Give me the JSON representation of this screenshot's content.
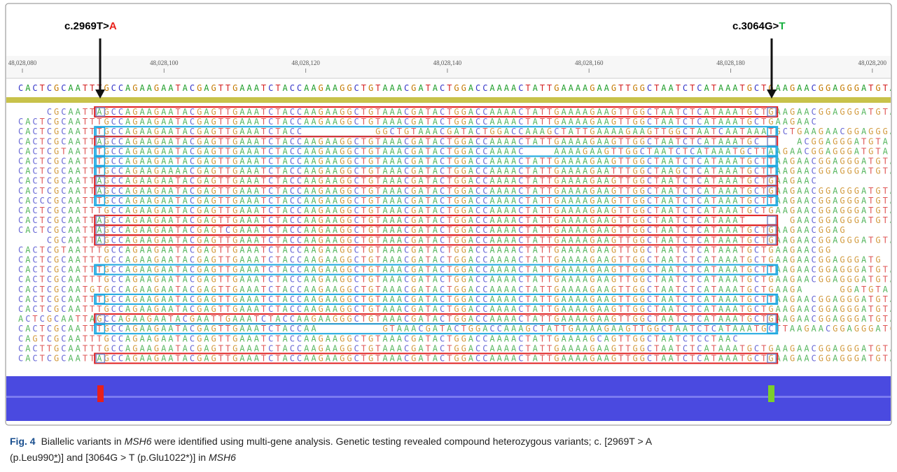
{
  "variants": [
    {
      "label": "c.2969T>",
      "alt": "A",
      "color": "#e8201a"
    },
    {
      "label": "c.3064G>",
      "alt": "T",
      "color": "#18b040"
    }
  ],
  "ruler": [
    "48,028,080",
    "48,028,100",
    "48,028,120",
    "48,028,140",
    "48,028,160",
    "48,028,180",
    "48,028,200"
  ],
  "reference": "CACTCGCAATTTGCCAGAAGAATACGAGTTGAAATCTACCAAGAAGGCTGTAAACGATACTGGACCAAAACTATTGAAAAGAAGTTGGCTAATCTCATAAATGCTGAAGAACGGAGGGATGTA",
  "reads": [
    "    CGCAATTAGCCAGAAGAATACGAGTTGAAATCTACCAAGAAGGCTGTAAACGATACTGGACCAAAACTATTGAAAAGAAGTTGGCTAATCTCATAAATGCTGAAGAACGGAGGGATGTA",
    "CACTCGCAATTTGCCAGAAGAATACGAGTTGAAATCTACCAAGAAGGCTGTAAACGATACTGGACCAAAACTATTGAAAAGAAGTTGGCTAATCTCATAAATGCTGAAGAAC",
    "CACTCGCAATTTGCCAGAAGAATACGAGTTGAAATCTACC          GGCTGTAAACGATACTGGACCAAAGCTATTGAAAAGAAGTTGGCTAATCAATAAATGCTGAAGAACGGAGGGATGTA",
    "CACTCGCAATTAGCCAGAAGAATACGAGTTGAAATCTACCAAGAAGGCTGTAAACGATACTGGACCAAAACTATTGAAAAGAAGTTGGCTAATCTCATAAATGC     ACGGAGGGATGTA",
    "CACTCGTAATTTGCCAGAAGAATACGAGTTGAAATCTACCAAGAAGGCTGTAAACGATACTGGACCAAAAC    AAAAGAAGTTGGCTAATCTCATAAATGCTTAAGAACGGAGGGATGTA",
    "CACTCGCAATTTGCCAGAAGAATACGAGTTGAAATCTACCAAGAAGGCTGTAAACGATACTGGACCAAAACTATTGAAAAGAAGTTGGCTAATCTCATAAATGCTTAAGAACGGAGGGATGTA",
    "CACTCGCAATTTGCCAGAAGAAAACGAGTTGAAATCTACCAAGAAGGCTGTAAACGATACTGGACCAAAACTATTGAAAAGAATTTGGCTAAGCTCATAAATGCTTAAGAACGGAGGGATGTA",
    "CACTCGCAATTAGCCAGAAGAATACGAGTTGAAATCTACCAAGAAGGCTGTAAACGATACTGGACCAAAACTATTGAAAAGAAGTTGGCTAATCTCATAAATGCTGAAGAAC",
    "CACTCGCAATTAGCCAGAAGAATACGAGTTGAAATCTACCAAGAAGGCTGTAAACGATACTGGACCAAAACTATTGAAAAGAAGTTGGCTAATCTCATAAATGCTGAAGAACGGAGGGATGTA",
    "CACCCGCAATTTGCCAGAAGAATACGAGTTGAAATCTACCAAGAAGGCTGTAAACGATACTGGACCAAAACTATTGAAAAGAAGTTGGCTAATCTCATAAATGCTTAAGAACGGAGGGATGTA",
    "CACTCGCAATTTGCCAGAAGAATACGAGTTGAAATCTACCAAGAAGGCTGTAAACGATACTGGACCAAAACTATTGAAAAGAAGTTGGCTAATCTCATAAATGCTGAAGAACGGAGGGATGTA",
    "CACTCGCAATTAGCCAGAAGAATACGAGTTGAAATCTACCAAGAAGGCTGTAAACGATACTGGACCAAAACTATTGAAAAGAAGTTGGCTAATCTCATAAAT      GAACGGAGGGATGTA",
    "CACTCGCAATTAGCCAGAAGAATACGAGTCGAAATCTACCAAGAAGGCTGTAAACGATACTGGACCAAAACTATTGAAAAGAAGTTGGCTAATCTCATAAATGCTGAAGAACGGAG",
    "    CGCAATTAGCCAGAAGAATACGAGTTGAAATCTACCAAGAAGGCTGTAAACGATACTGGACCAAAACTATTGAAAAGAAGTTGGCTAATCTCATAAATGCTGAAGAACGGAGGGATGTA",
    "CACTCGTAATTTGCCAGAAGAATACGAGTTGAAATCTACCAAGAAGGCTGTAAACGATACTGGACCAAAACTATTGAAAAGAAGTTGGCTAATCTCATAAATGCTGAAGAACGG",
    "CACTCGCAATTTGCCAGAAGAATACGAGTTGAAATCTACCAAGAAGGCTGTAAACGATACTGGACCAAAACTATTGAAAAGAAGTTGGCTAATCTCATAAATGCTGAAGAACGGAGGGATG",
    "CACTCGCAATTTGCCAGAAGAATACGAGTTGAAATCTACCAAGAAGGCTGTAAACGATACTGGACCAAAACTATTGAAAAGAAGTTGGCTAATCTCATAAATGCTTAAGAACGGAGGGATGTA",
    "CACTCGCAATTTGCCAGAAGAATACGAGTTGAAATCTACCAAGAAGGCTGTAAACGATACTGGACCAAAACTATTGAAAAGAAGTTGGCTAATCTCATAAATGCTGAAGAACGGAGGGATGTA",
    "CACTCGCAATGTGCCAGAAGAATACGAGTTGAAATCTACCAAGAAGGCTGTAAACGATACTGGACCAAAACTATTGAAAAGAAGTTGGCTAATCTCATAAATGCTGAAGA     GGATGTA",
    "CACTCGCAATTTGCCAGAAGAATACGAGTTGAAATCTACCAAGAAGGCTGTAAACGATACTGGACCAAAACTATTGAAAAGAAGTTGGCTAATCTCATAAATGCTTAAGAACGGAGGGATGTA",
    "CACTCGCAATTTGCCAGAAGAATACGAGTTGAAATCTACCAAGAAGGCTGTAAACGATACTGGACCAAAACTATTGAAAAGAAGTTGGCTAATCTCATAAATGCTGAAGAACGGAGGGATGTA",
    "ACTCGCAATTAGCCAGAAGAATACGAATTGAAATCTACCAAGAAGGGCTGTAAACGATACTGGACCAAAACTATTGAAAAGAAGTTGGCTAATCTCATAAATGCTGAAGAACGGAGGGATGTA",
    "CACTCGCAATTTGCCAGAAGAATACGAGTTGAAATCTACCAA         GTAAACGATACTGGACCAAAGCTATTGAAAAGAAGTTGGCTAATCTCATAAATGCTTAAGAACGGAGGGATGTA",
    "CAGTCGCAATTTGCCAGAAGAATACGAGTTGAAATCTACCAAGAAGGCTGTAAACGATACTGGACCAAAACTATTGAAAAGCAGTTGGCTAATCTCCTAAC",
    "CACTTGCAATTTGCCAGAAGAATACGAGTTGAAATCTACCAAGAAGGCTGTAAACGATACTGGACCAAAACTATTGAAAAGAAGTTGGCTAATCTCATAAATGCTGAAGAACGGAGGGATGTA",
    "CACTCGCAATTAGCCAGAAGAATACGAGTTGAAATCTACCAAGAAGGCTGTAAACGATACTGGACCAAAACTATTGAAAAGAAGTTGGCTAATCTCATAAATGCTGAAGAACGGAGGGATGTA"
  ],
  "caption": {
    "label": "Fig. 4",
    "line1": [
      "Biallelic variants in ",
      "MSH6",
      " were identified using multi-gene analysis. Genetic testing revealed compound heterozygous variants; c. [2969T > A"
    ],
    "line2": [
      "(p.Leu990",
      "*",
      ")] and [3064G > T (p.Glu1022*)] in ",
      "MSH6"
    ]
  }
}
